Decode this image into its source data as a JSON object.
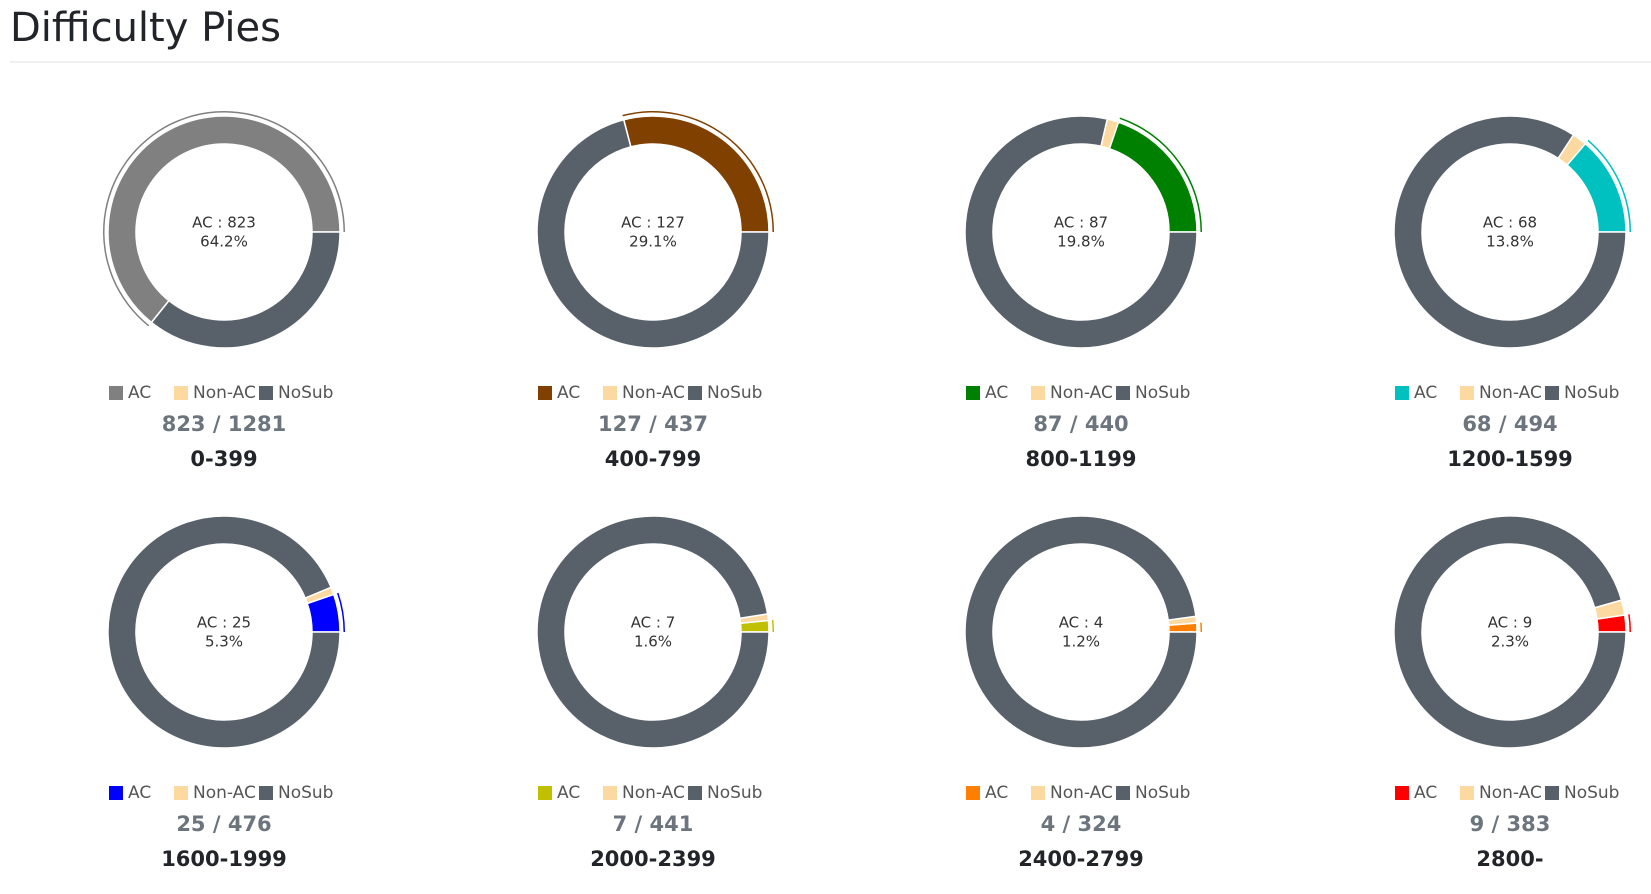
{
  "header": {
    "title": "Difficulty Pies"
  },
  "chart_data": [
    {
      "type": "pie",
      "title": "0-399",
      "categories": [
        "AC",
        "Non-AC",
        "NoSub"
      ],
      "values": [
        823,
        0,
        458
      ],
      "colors": [
        "#808080",
        "#fcd9a0",
        "#58616a"
      ],
      "center_text": [
        "AC : 823",
        "64.2%"
      ],
      "count_text": "823 / 1281"
    },
    {
      "type": "pie",
      "title": "400-799",
      "categories": [
        "AC",
        "Non-AC",
        "NoSub"
      ],
      "values": [
        127,
        0,
        310
      ],
      "colors": [
        "#804000",
        "#fcd9a0",
        "#58616a"
      ],
      "center_text": [
        "AC : 127",
        "29.1%"
      ],
      "count_text": "127 / 437"
    },
    {
      "type": "pie",
      "title": "800-1199",
      "categories": [
        "AC",
        "Non-AC",
        "NoSub"
      ],
      "values": [
        87,
        7,
        346
      ],
      "colors": [
        "#008000",
        "#fcd9a0",
        "#58616a"
      ],
      "center_text": [
        "AC : 87",
        "19.8%"
      ],
      "count_text": "87 / 440"
    },
    {
      "type": "pie",
      "title": "1200-1599",
      "categories": [
        "AC",
        "Non-AC",
        "NoSub"
      ],
      "values": [
        68,
        10,
        416
      ],
      "colors": [
        "#00c0c0",
        "#fcd9a0",
        "#58616a"
      ],
      "center_text": [
        "AC : 68",
        "13.8%"
      ],
      "count_text": "68 / 494"
    },
    {
      "type": "pie",
      "title": "1600-1999",
      "categories": [
        "AC",
        "Non-AC",
        "NoSub"
      ],
      "values": [
        25,
        5,
        446
      ],
      "colors": [
        "#0000ff",
        "#fcd9a0",
        "#58616a"
      ],
      "center_text": [
        "AC : 25",
        "5.3%"
      ],
      "count_text": "25 / 476"
    },
    {
      "type": "pie",
      "title": "2000-2399",
      "categories": [
        "AC",
        "Non-AC",
        "NoSub"
      ],
      "values": [
        7,
        4,
        430
      ],
      "colors": [
        "#c0c000",
        "#fcd9a0",
        "#58616a"
      ],
      "center_text": [
        "AC : 7",
        "1.6%"
      ],
      "count_text": "7 / 441"
    },
    {
      "type": "pie",
      "title": "2400-2799",
      "categories": [
        "AC",
        "Non-AC",
        "NoSub"
      ],
      "values": [
        4,
        3,
        317
      ],
      "colors": [
        "#ff8000",
        "#fcd9a0",
        "#58616a"
      ],
      "center_text": [
        "AC : 4",
        "1.2%"
      ],
      "count_text": "4 / 324"
    },
    {
      "type": "pie",
      "title": "2800-",
      "categories": [
        "AC",
        "Non-AC",
        "NoSub"
      ],
      "values": [
        9,
        8,
        366
      ],
      "colors": [
        "#ff0000",
        "#fcd9a0",
        "#58616a"
      ],
      "center_text": [
        "AC : 9",
        "2.3%"
      ],
      "count_text": "9 / 383"
    }
  ]
}
